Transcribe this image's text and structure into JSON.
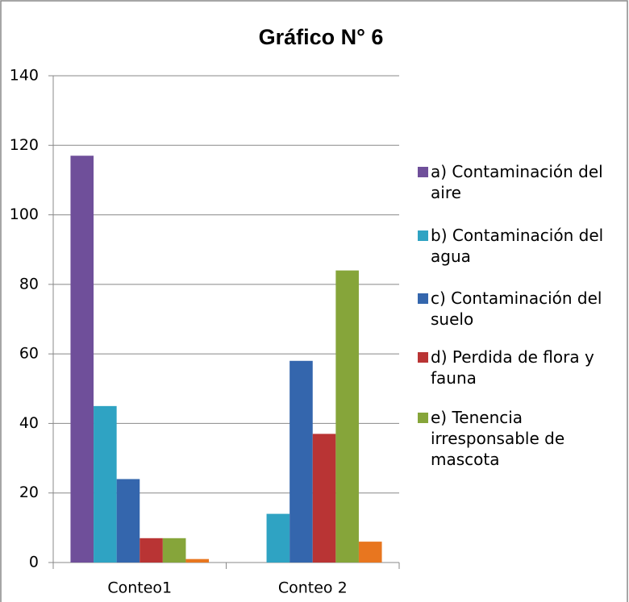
{
  "chart_data": {
    "type": "bar",
    "title": "Gráfico N° 6",
    "categories": [
      "Conteo1",
      "Conteo 2"
    ],
    "series": [
      {
        "name": "a) Contaminación del aire",
        "color": "#6f4f9a",
        "values": [
          117,
          0
        ]
      },
      {
        "name": "b) Contaminación del agua",
        "color": "#2fa3c3",
        "values": [
          45,
          14
        ]
      },
      {
        "name": "c) Contaminación del suelo",
        "color": "#3466ad",
        "values": [
          24,
          58
        ]
      },
      {
        "name": "d) Perdida de flora y fauna",
        "color": "#b93434",
        "values": [
          7,
          37
        ]
      },
      {
        "name": "e) Tenencia irresponsable de mascota",
        "color": "#86a53a",
        "values": [
          7,
          84
        ]
      },
      {
        "color": "#e8761f",
        "values": [
          1,
          6
        ]
      }
    ],
    "ylim": [
      0,
      140
    ],
    "yticks": [
      0,
      20,
      40,
      60,
      80,
      100,
      120,
      140
    ],
    "grid": true
  }
}
